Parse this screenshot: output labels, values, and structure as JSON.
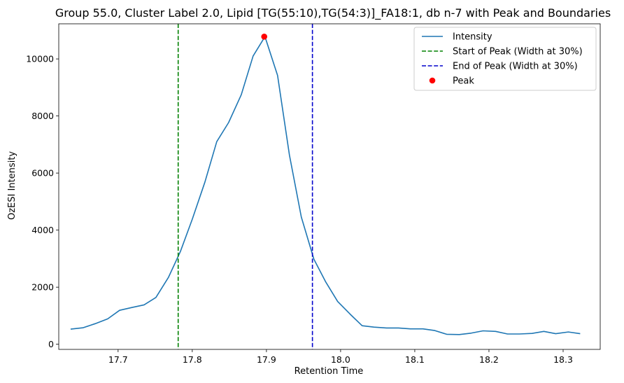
{
  "chart_data": {
    "type": "line",
    "title": "Group 55.0, Cluster Label 2.0, Lipid [TG(55:10),TG(54:3)]_FA18:1, db n-7 with Peak and Boundaries",
    "xlabel": "Retention Time",
    "ylabel": "OzESI Intensity",
    "xlim": [
      17.62,
      18.35
    ],
    "ylim": [
      -180,
      11230
    ],
    "xticks": [
      17.7,
      17.8,
      17.9,
      18.0,
      18.1,
      18.2,
      18.3
    ],
    "xtick_labels": [
      "17.7",
      "17.8",
      "17.9",
      "18.0",
      "18.1",
      "18.2",
      "18.3"
    ],
    "yticks": [
      0,
      2000,
      4000,
      6000,
      8000,
      10000
    ],
    "ytick_labels": [
      "0",
      "2000",
      "4000",
      "6000",
      "8000",
      "10000"
    ],
    "grid": false,
    "legend_position": "top-right",
    "series": [
      {
        "name": "Intensity",
        "color": "#1f77b4",
        "style": "solid",
        "x": [
          17.636,
          17.653,
          17.669,
          17.686,
          17.702,
          17.719,
          17.735,
          17.751,
          17.768,
          17.784,
          17.8,
          17.817,
          17.833,
          17.849,
          17.866,
          17.882,
          17.898,
          17.915,
          17.931,
          17.947,
          17.964,
          17.98,
          17.996,
          18.013,
          18.029,
          18.045,
          18.062,
          18.078,
          18.094,
          18.111,
          18.127,
          18.143,
          18.16,
          18.176,
          18.192,
          18.209,
          18.225,
          18.241,
          18.258,
          18.274,
          18.29,
          18.307,
          18.323
        ],
        "y": [
          530,
          580,
          720,
          890,
          1190,
          1290,
          1380,
          1640,
          2350,
          3250,
          4380,
          5680,
          7100,
          7770,
          8740,
          10100,
          10780,
          9420,
          6630,
          4460,
          2980,
          2180,
          1500,
          1050,
          650,
          600,
          570,
          570,
          540,
          540,
          480,
          350,
          340,
          390,
          470,
          450,
          360,
          360,
          380,
          450,
          370,
          430,
          370
        ]
      },
      {
        "name": "Start of Peak (Width at 30%)",
        "color": "#008000",
        "style": "dashed",
        "vline_x": 17.781
      },
      {
        "name": "End of Peak (Width at 30%)",
        "color": "#0000cc",
        "style": "dashed",
        "vline_x": 17.962
      },
      {
        "name": "Peak",
        "color": "#ff0000",
        "style": "marker",
        "x": [
          17.897
        ],
        "y": [
          10780
        ]
      }
    ]
  }
}
